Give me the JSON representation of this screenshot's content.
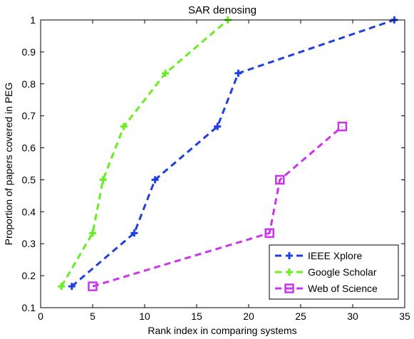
{
  "chart_data": {
    "type": "line",
    "title": "SAR denosing",
    "xlabel": "Rank index in comparing systems",
    "ylabel": "Proportion of papers covered in PEG",
    "xlim": [
      0,
      35
    ],
    "ylim": [
      0.1,
      1
    ],
    "xticks": [
      0,
      5,
      10,
      15,
      20,
      25,
      30,
      35
    ],
    "yticks": [
      0.1,
      0.2,
      0.3,
      0.4,
      0.5,
      0.6,
      0.7,
      0.8,
      0.9,
      1
    ],
    "ytick_labels": [
      "0.1",
      "0.2",
      "0.3",
      "0.4",
      "0.5",
      "0.6",
      "0.7",
      "0.8",
      "0.9",
      "1"
    ],
    "grid": false,
    "legend_position": "bottom-right",
    "series": [
      {
        "name": "IEEE Xplore",
        "color": "#1f3fe0",
        "marker": "plus",
        "line_style": "dashed",
        "x": [
          3,
          9,
          11,
          17,
          19,
          34
        ],
        "y": [
          0.1667,
          0.3333,
          0.5,
          0.6667,
          0.8333,
          1.0
        ]
      },
      {
        "name": "Google Scholar",
        "color": "#66ee22",
        "marker": "plus",
        "line_style": "dashed",
        "x": [
          2,
          5,
          6,
          8,
          12,
          18
        ],
        "y": [
          0.1667,
          0.3333,
          0.5,
          0.6667,
          0.8333,
          1.0
        ]
      },
      {
        "name": "Web of Science",
        "color": "#cc33ee",
        "marker": "square",
        "line_style": "dashed",
        "x": [
          5,
          22,
          23,
          29
        ],
        "y": [
          0.1667,
          0.3333,
          0.5,
          0.6667
        ]
      }
    ]
  }
}
